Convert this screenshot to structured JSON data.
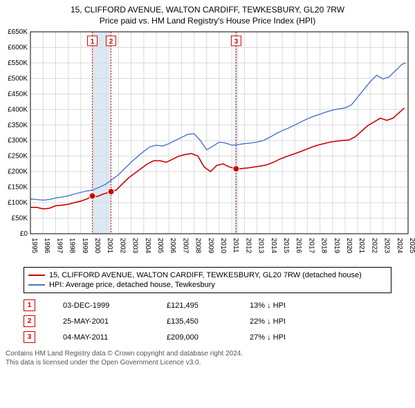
{
  "title_line1": "15, CLIFFORD AVENUE, WALTON CARDIFF, TEWKESBURY, GL20 7RW",
  "title_line2": "Price paid vs. HM Land Registry's House Price Index (HPI)",
  "chart": {
    "type": "line",
    "background_color": "#ffffff",
    "grid_color": "#d9d9d9",
    "axis_color": "#000000",
    "label_fontsize": 10,
    "ylim": [
      0,
      650000
    ],
    "ytick_step": 50000,
    "ytick_labels": [
      "£0",
      "£50K",
      "£100K",
      "£150K",
      "£200K",
      "£250K",
      "£300K",
      "£350K",
      "£400K",
      "£450K",
      "£500K",
      "£550K",
      "£600K",
      "£650K"
    ],
    "xlim": [
      1995,
      2025
    ],
    "xtick_step": 1,
    "xtick_labels": [
      "1995",
      "1996",
      "1997",
      "1998",
      "1999",
      "2000",
      "2001",
      "2002",
      "2003",
      "2004",
      "2005",
      "2006",
      "2007",
      "2008",
      "2009",
      "2010",
      "2011",
      "2012",
      "2013",
      "2014",
      "2015",
      "2016",
      "2017",
      "2018",
      "2019",
      "2020",
      "2021",
      "2022",
      "2023",
      "2024",
      "2025"
    ],
    "highlight_band_color": "#dde8f5",
    "highlight_bands": [
      [
        1999.9,
        2001.4
      ],
      [
        2011.2,
        2011.5
      ]
    ],
    "sale_line_color": "#cc0000",
    "sale_line_dash": "2,2",
    "series": [
      {
        "name": "property_price",
        "color": "#cc0000",
        "line_width": 1.6,
        "data": [
          [
            1995.0,
            85000
          ],
          [
            1995.5,
            85000
          ],
          [
            1996.0,
            80000
          ],
          [
            1996.5,
            82000
          ],
          [
            1997.0,
            90000
          ],
          [
            1997.5,
            92000
          ],
          [
            1998.0,
            95000
          ],
          [
            1998.5,
            100000
          ],
          [
            1999.0,
            105000
          ],
          [
            1999.5,
            112000
          ],
          [
            1999.92,
            121495
          ],
          [
            2000.3,
            120000
          ],
          [
            2000.8,
            128000
          ],
          [
            2001.4,
            135450
          ],
          [
            2001.8,
            140000
          ],
          [
            2002.3,
            160000
          ],
          [
            2002.8,
            180000
          ],
          [
            2003.3,
            195000
          ],
          [
            2003.8,
            210000
          ],
          [
            2004.3,
            225000
          ],
          [
            2004.8,
            235000
          ],
          [
            2005.3,
            235000
          ],
          [
            2005.8,
            230000
          ],
          [
            2006.3,
            240000
          ],
          [
            2006.8,
            250000
          ],
          [
            2007.3,
            255000
          ],
          [
            2007.8,
            258000
          ],
          [
            2008.3,
            250000
          ],
          [
            2008.8,
            215000
          ],
          [
            2009.3,
            200000
          ],
          [
            2009.8,
            220000
          ],
          [
            2010.3,
            225000
          ],
          [
            2010.8,
            215000
          ],
          [
            2011.34,
            209000
          ],
          [
            2011.8,
            210000
          ],
          [
            2012.3,
            212000
          ],
          [
            2012.8,
            215000
          ],
          [
            2013.3,
            218000
          ],
          [
            2013.8,
            222000
          ],
          [
            2014.3,
            230000
          ],
          [
            2014.8,
            240000
          ],
          [
            2015.3,
            248000
          ],
          [
            2015.8,
            255000
          ],
          [
            2016.3,
            262000
          ],
          [
            2016.8,
            270000
          ],
          [
            2017.3,
            278000
          ],
          [
            2017.8,
            285000
          ],
          [
            2018.3,
            290000
          ],
          [
            2018.8,
            295000
          ],
          [
            2019.3,
            298000
          ],
          [
            2019.8,
            300000
          ],
          [
            2020.3,
            302000
          ],
          [
            2020.8,
            312000
          ],
          [
            2021.3,
            330000
          ],
          [
            2021.8,
            348000
          ],
          [
            2022.3,
            360000
          ],
          [
            2022.8,
            372000
          ],
          [
            2023.3,
            365000
          ],
          [
            2023.8,
            372000
          ],
          [
            2024.3,
            390000
          ],
          [
            2024.7,
            405000
          ]
        ]
      },
      {
        "name": "hpi_tewkesbury",
        "color": "#4a74c9",
        "line_width": 1.4,
        "data": [
          [
            1995.0,
            112000
          ],
          [
            1995.5,
            110000
          ],
          [
            1996.0,
            108000
          ],
          [
            1996.5,
            110000
          ],
          [
            1997.0,
            115000
          ],
          [
            1997.5,
            118000
          ],
          [
            1998.0,
            122000
          ],
          [
            1998.5,
            128000
          ],
          [
            1999.0,
            133000
          ],
          [
            1999.5,
            138000
          ],
          [
            1999.92,
            140000
          ],
          [
            2000.5,
            150000
          ],
          [
            2001.0,
            160000
          ],
          [
            2001.4,
            172000
          ],
          [
            2002.0,
            190000
          ],
          [
            2002.5,
            210000
          ],
          [
            2003.0,
            230000
          ],
          [
            2003.5,
            248000
          ],
          [
            2004.0,
            265000
          ],
          [
            2004.5,
            280000
          ],
          [
            2005.0,
            285000
          ],
          [
            2005.5,
            282000
          ],
          [
            2006.0,
            290000
          ],
          [
            2006.5,
            300000
          ],
          [
            2007.0,
            310000
          ],
          [
            2007.5,
            320000
          ],
          [
            2008.0,
            322000
          ],
          [
            2008.5,
            300000
          ],
          [
            2009.0,
            270000
          ],
          [
            2009.5,
            282000
          ],
          [
            2010.0,
            295000
          ],
          [
            2010.5,
            292000
          ],
          [
            2011.0,
            285000
          ],
          [
            2011.34,
            286000
          ],
          [
            2012.0,
            290000
          ],
          [
            2012.5,
            292000
          ],
          [
            2013.0,
            295000
          ],
          [
            2013.5,
            300000
          ],
          [
            2014.0,
            310000
          ],
          [
            2014.5,
            322000
          ],
          [
            2015.0,
            332000
          ],
          [
            2015.5,
            340000
          ],
          [
            2016.0,
            350000
          ],
          [
            2016.5,
            360000
          ],
          [
            2017.0,
            370000
          ],
          [
            2017.5,
            378000
          ],
          [
            2018.0,
            385000
          ],
          [
            2018.5,
            392000
          ],
          [
            2019.0,
            398000
          ],
          [
            2019.5,
            402000
          ],
          [
            2020.0,
            405000
          ],
          [
            2020.5,
            415000
          ],
          [
            2021.0,
            440000
          ],
          [
            2021.5,
            465000
          ],
          [
            2022.0,
            490000
          ],
          [
            2022.5,
            510000
          ],
          [
            2023.0,
            498000
          ],
          [
            2023.5,
            505000
          ],
          [
            2024.0,
            525000
          ],
          [
            2024.5,
            545000
          ],
          [
            2024.8,
            550000
          ]
        ]
      }
    ],
    "sale_markers": [
      {
        "n": "1",
        "year": 1999.92,
        "price": 121495
      },
      {
        "n": "2",
        "year": 2001.4,
        "price": 135450
      },
      {
        "n": "3",
        "year": 2011.34,
        "price": 209000
      }
    ]
  },
  "legend": {
    "series1": {
      "label": "15, CLIFFORD AVENUE, WALTON CARDIFF, TEWKESBURY, GL20 7RW (detached house)",
      "color": "#cc0000"
    },
    "series2": {
      "label": "HPI: Average price, detached house, Tewkesbury",
      "color": "#4a74c9"
    }
  },
  "sales": [
    {
      "n": "1",
      "date": "03-DEC-1999",
      "price": "£121,495",
      "diff": "13% ↓ HPI",
      "color": "#cc0000"
    },
    {
      "n": "2",
      "date": "25-MAY-2001",
      "price": "£135,450",
      "diff": "22% ↓ HPI",
      "color": "#cc0000"
    },
    {
      "n": "3",
      "date": "04-MAY-2011",
      "price": "£209,000",
      "diff": "27% ↓ HPI",
      "color": "#cc0000"
    }
  ],
  "footer_line1": "Contains HM Land Registry data © Crown copyright and database right 2024.",
  "footer_line2": "This data is licensed under the Open Government Licence v3.0."
}
